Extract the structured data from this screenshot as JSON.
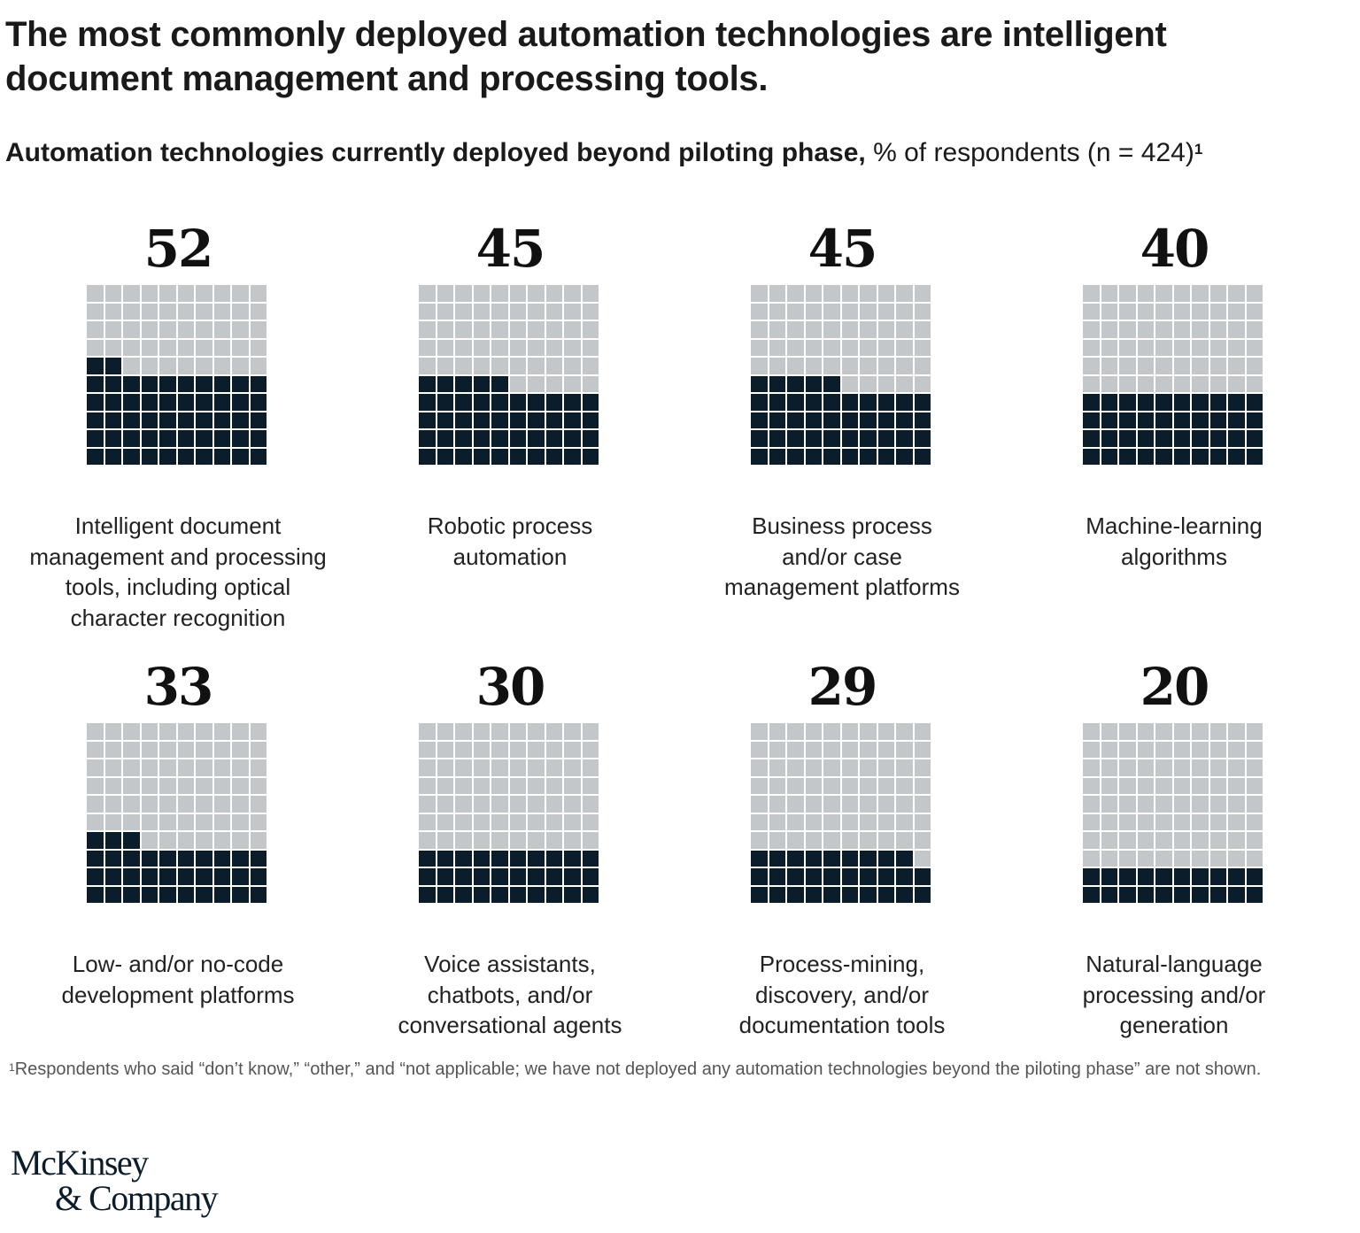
{
  "title": "The most commonly deployed automation technologies are intelligent document management and processing tools.",
  "subtitle_bold": "Automation technologies currently deployed beyond piloting phase,",
  "subtitle_rest": " % of respondents (n = 424)",
  "subtitle_footnote_mark": "1",
  "footnote_mark": "1",
  "footnote": "Respondents who said “don’t know,” “other,” and “not applicable; we have not deployed any automation technologies beyond the piloting phase” are not shown.",
  "logo": {
    "line1": "McKinsey",
    "line2": "& Company"
  },
  "colors": {
    "filled": "#0b1d2b",
    "empty": "#c4c7ca"
  },
  "chart_data": {
    "type": "waffle",
    "unit": "% of respondents",
    "grid": [
      10,
      10
    ],
    "fill_order": "bottom-left, row by row",
    "categories": [
      "Intelligent document management and processing tools, including optical character recognition",
      "Robotic process automation",
      "Business process and/or case management platforms",
      "Machine-learning algorithms",
      "Low- and/or no-code development platforms",
      "Voice assistants, chatbots, and/or conversational agents",
      "Process-mining, discovery, and/or documentation tools",
      "Natural-language processing and/or generation"
    ],
    "display_labels": [
      "Intelligent document\nmanagement and processing\ntools, including optical\ncharacter recognition",
      "Robotic process\nautomation",
      "Business process\nand/or case\nmanagement platforms",
      "Machine-learning\nalgorithms",
      "Low- and/or no-code\ndevelopment platforms",
      "Voice assistants,\nchatbots, and/or\nconversational agents",
      "Process-mining,\ndiscovery, and/or\ndocumentation tools",
      "Natural-language\nprocessing and/or\ngeneration"
    ],
    "values": [
      52,
      45,
      45,
      40,
      33,
      30,
      29,
      20
    ]
  }
}
